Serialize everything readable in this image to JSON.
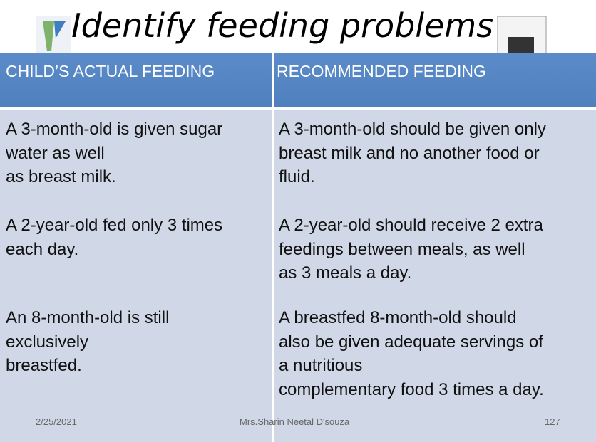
{
  "title": "Identify feeding problems",
  "table": {
    "header": [
      "CHILD’S ACTUAL FEEDING",
      "RECOMMENDED FEEDING"
    ],
    "rows": [
      [
        [
          "A 3-month-old is given sugar",
          "water as well",
          "as breast milk."
        ],
        [
          "A 3-month-old should be given only",
          "breast milk and no another food or",
          "fluid."
        ]
      ],
      [
        [
          "A 2-year-old fed only 3 times",
          "each day."
        ],
        [
          "A 2-year-old should receive 2 extra",
          "feedings between meals, as well",
          "as 3 meals a day."
        ]
      ],
      [
        [
          "An 8-month-old is still",
          "exclusively",
          "breastfed."
        ],
        [
          "A breastfed 8-month-old should",
          "also be given adequate servings of",
          "a nutritious",
          "complementary food 3 times a day."
        ]
      ]
    ]
  },
  "footer": {
    "date": "2/25/2021",
    "author": "Mrs.Sharin Neetal D'souza",
    "page": "127"
  }
}
